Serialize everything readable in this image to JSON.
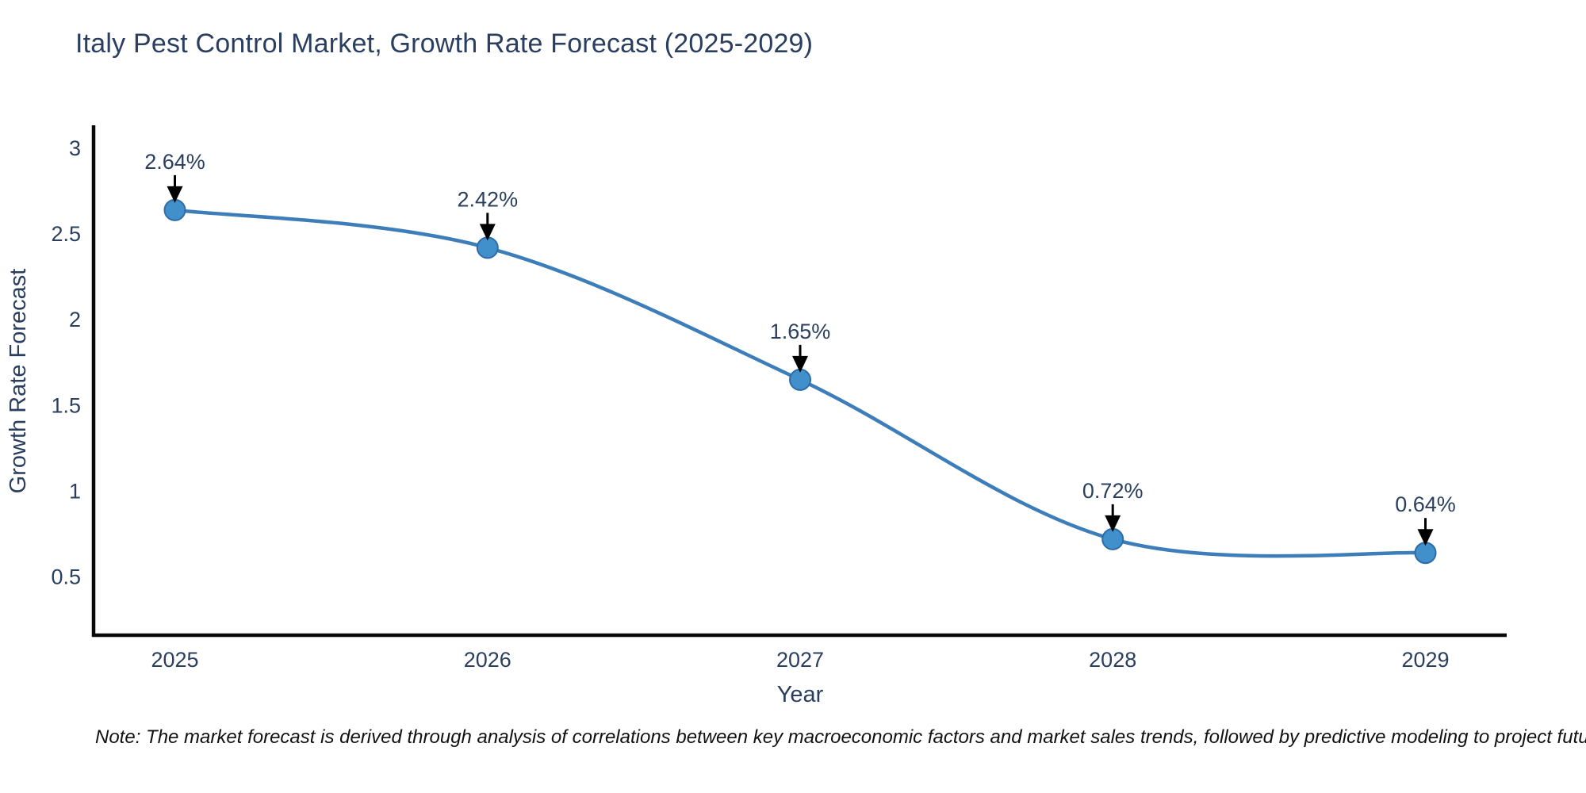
{
  "chart_data": {
    "type": "line",
    "title": "Italy Pest Control Market, Growth Rate Forecast (2025-2029)",
    "xlabel": "Year",
    "ylabel": "Growth Rate Forecast",
    "x": [
      2025,
      2026,
      2027,
      2028,
      2029
    ],
    "values": [
      2.64,
      2.42,
      1.65,
      0.72,
      0.64
    ],
    "point_labels": [
      "2.64%",
      "2.42%",
      "1.65%",
      "0.72%",
      "0.64%"
    ],
    "x_tick_labels": [
      "2025",
      "2026",
      "2027",
      "2028",
      "2029"
    ],
    "y_ticks": [
      0.5,
      1,
      1.5,
      2,
      2.5,
      3
    ],
    "y_tick_labels": [
      "0.5",
      "1",
      "1.5",
      "2",
      "2.5",
      "3"
    ],
    "xlim": [
      2024.74,
      2029.26
    ],
    "ylim": [
      0.16,
      3.125
    ],
    "grid": false,
    "legend": "none",
    "line_shape": "spline",
    "colors": {
      "line": "#3d7eba",
      "marker_fill": "#4190cc",
      "marker_edge": "#2d6ca6",
      "axis": "#0a0a0a",
      "text": "#2a3f5f",
      "annotation_text": "#2a3f5f",
      "annotation_arrow": "#000000",
      "note_text": "#111111"
    }
  },
  "note": "Note: The market forecast is derived through analysis of correlations between key macroeconomic factors and market sales trends, followed by predictive modeling to project future sales"
}
